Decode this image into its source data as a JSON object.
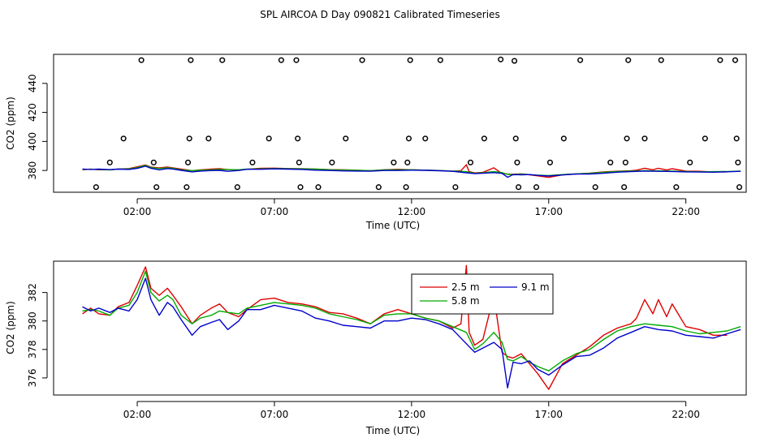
{
  "title": "SPL AIRCOA D  Day 090821  Calibrated Timeseries",
  "colors": {
    "red": "#dd0000",
    "green": "#00aa00",
    "blue": "#0000cc",
    "black": "#000000"
  },
  "chart_data": [
    {
      "type": "scatter+line",
      "name": "top-panel",
      "xlabel": "Time (UTC)",
      "ylabel": "CO2 (ppm)",
      "xlim": [
        -1.05,
        24.2
      ],
      "ylim": [
        365,
        460
      ],
      "xticks": [
        2,
        7,
        12,
        17,
        22
      ],
      "xticklabels": [
        "02:00",
        "07:00",
        "12:00",
        "17:00",
        "22:00"
      ],
      "yticks": [
        380,
        400,
        420,
        440
      ],
      "yticklabels": [
        "380",
        "400",
        "420",
        "440"
      ],
      "markers": [
        {
          "x": 0.5,
          "y": 368.5
        },
        {
          "x": 1.0,
          "y": 385.5
        },
        {
          "x": 1.5,
          "y": 402
        },
        {
          "x": 2.15,
          "y": 456
        },
        {
          "x": 2.6,
          "y": 385.5
        },
        {
          "x": 2.7,
          "y": 368.5
        },
        {
          "x": 3.8,
          "y": 368.5
        },
        {
          "x": 3.85,
          "y": 385.5
        },
        {
          "x": 3.9,
          "y": 402
        },
        {
          "x": 3.95,
          "y": 456
        },
        {
          "x": 4.6,
          "y": 402
        },
        {
          "x": 5.1,
          "y": 456
        },
        {
          "x": 5.65,
          "y": 368.5
        },
        {
          "x": 6.2,
          "y": 385.5
        },
        {
          "x": 6.8,
          "y": 402
        },
        {
          "x": 7.25,
          "y": 456
        },
        {
          "x": 7.8,
          "y": 456
        },
        {
          "x": 7.85,
          "y": 402
        },
        {
          "x": 7.9,
          "y": 385.5
        },
        {
          "x": 7.95,
          "y": 368.5
        },
        {
          "x": 8.6,
          "y": 368.5
        },
        {
          "x": 9.1,
          "y": 385.5
        },
        {
          "x": 9.6,
          "y": 402
        },
        {
          "x": 10.2,
          "y": 456
        },
        {
          "x": 10.8,
          "y": 368.5
        },
        {
          "x": 11.35,
          "y": 385.5
        },
        {
          "x": 11.8,
          "y": 368.5
        },
        {
          "x": 11.85,
          "y": 385.5
        },
        {
          "x": 11.9,
          "y": 402
        },
        {
          "x": 11.95,
          "y": 456
        },
        {
          "x": 12.5,
          "y": 402
        },
        {
          "x": 13.05,
          "y": 456
        },
        {
          "x": 13.6,
          "y": 368.5
        },
        {
          "x": 14.15,
          "y": 385.5
        },
        {
          "x": 14.65,
          "y": 402
        },
        {
          "x": 15.25,
          "y": 456.5
        },
        {
          "x": 15.75,
          "y": 455.5
        },
        {
          "x": 15.8,
          "y": 402
        },
        {
          "x": 15.85,
          "y": 385.5
        },
        {
          "x": 15.9,
          "y": 368.5
        },
        {
          "x": 16.55,
          "y": 368.5
        },
        {
          "x": 17.05,
          "y": 385.5
        },
        {
          "x": 17.55,
          "y": 402
        },
        {
          "x": 18.15,
          "y": 456
        },
        {
          "x": 18.7,
          "y": 368.5
        },
        {
          "x": 19.25,
          "y": 385.5
        },
        {
          "x": 19.75,
          "y": 368.5
        },
        {
          "x": 19.8,
          "y": 385.5
        },
        {
          "x": 19.85,
          "y": 402
        },
        {
          "x": 19.9,
          "y": 456
        },
        {
          "x": 20.5,
          "y": 402
        },
        {
          "x": 21.1,
          "y": 456
        },
        {
          "x": 21.65,
          "y": 368.5
        },
        {
          "x": 22.15,
          "y": 385.5
        },
        {
          "x": 22.7,
          "y": 402
        },
        {
          "x": 23.25,
          "y": 456
        },
        {
          "x": 23.8,
          "y": 456
        },
        {
          "x": 23.85,
          "y": 402
        },
        {
          "x": 23.9,
          "y": 385.5
        },
        {
          "x": 23.95,
          "y": 368.5
        }
      ]
    },
    {
      "type": "line",
      "name": "bottom-panel",
      "xlabel": "Time (UTC)",
      "ylabel": "CO2 (ppm)",
      "xlim": [
        -1.05,
        24.2
      ],
      "ylim": [
        374.8,
        384.2
      ],
      "xticks": [
        2,
        7,
        12,
        17,
        22
      ],
      "xticklabels": [
        "02:00",
        "07:00",
        "12:00",
        "17:00",
        "22:00"
      ],
      "yticks": [
        376,
        378,
        380,
        382
      ],
      "yticklabels": [
        "376",
        "378",
        "380",
        "382"
      ],
      "legend": {
        "position": "center-top",
        "entries": [
          "2.5 m",
          "5.8 m",
          "9.1 m"
        ]
      },
      "series": [
        {
          "name": "2.5 m",
          "color": "red",
          "x": [
            0,
            0.3,
            0.6,
            1,
            1.3,
            1.7,
            2,
            2.3,
            2.5,
            2.8,
            3.1,
            3.3,
            3.6,
            4,
            4.3,
            4.7,
            5,
            5.3,
            5.7,
            6,
            6.5,
            7,
            7.5,
            8,
            8.5,
            9,
            9.5,
            10,
            10.5,
            11,
            11.5,
            12,
            12.5,
            13,
            13.5,
            13.8,
            14,
            14.1,
            14.3,
            14.6,
            15,
            15.3,
            15.5,
            15.7,
            16,
            16.3,
            16.6,
            17,
            17.5,
            18,
            18.5,
            19,
            19.5,
            20,
            20.2,
            20.5,
            20.8,
            21,
            21.3,
            21.5,
            22,
            22.5,
            23,
            23.5
          ],
          "y": [
            380.5,
            380.9,
            380.5,
            380.4,
            381,
            381.3,
            382.5,
            383.8,
            382.3,
            381.8,
            382.3,
            381.8,
            381,
            379.8,
            380.4,
            380.9,
            381.2,
            380.6,
            380.3,
            380.8,
            381.5,
            381.6,
            381.3,
            381.2,
            381,
            380.6,
            380.5,
            380.2,
            379.8,
            380.5,
            380.8,
            380.5,
            380.2,
            380,
            379.5,
            379.8,
            383.9,
            379.2,
            378.3,
            378.7,
            381.8,
            377.8,
            377.5,
            377.4,
            377.7,
            377.0,
            376.3,
            375.2,
            377.0,
            377.6,
            378.2,
            379,
            379.5,
            379.8,
            380.2,
            381.5,
            380.5,
            381.5,
            380.3,
            381.2,
            379.6,
            379.4,
            379.0,
            379.0
          ]
        },
        {
          "name": "5.8 m",
          "color": "green",
          "x": [
            0,
            0.3,
            0.6,
            1,
            1.3,
            1.7,
            2,
            2.3,
            2.5,
            2.8,
            3.1,
            3.3,
            3.6,
            4,
            4.3,
            4.7,
            5,
            5.3,
            5.7,
            6,
            6.5,
            7,
            7.5,
            8,
            8.5,
            9,
            9.5,
            10,
            10.5,
            11,
            11.5,
            12,
            12.5,
            13,
            13.5,
            14,
            14.3,
            14.6,
            15,
            15.3,
            15.5,
            15.7,
            16,
            16.3,
            16.6,
            17,
            17.5,
            18,
            18.5,
            19,
            19.5,
            20,
            20.5,
            21,
            21.5,
            22,
            22.5,
            23,
            23.5,
            24
          ],
          "y": [
            380.7,
            380.8,
            380.7,
            380.4,
            380.9,
            381.1,
            382.0,
            383.5,
            382.0,
            381.4,
            381.8,
            381.5,
            380.4,
            379.8,
            380.2,
            380.4,
            380.7,
            380.6,
            380.5,
            380.9,
            381.1,
            381.3,
            381.2,
            381.1,
            380.9,
            380.5,
            380.3,
            380.1,
            379.8,
            380.4,
            380.5,
            380.5,
            380.2,
            380.0,
            379.6,
            379.2,
            378.0,
            378.4,
            379.2,
            378.5,
            377.3,
            377.2,
            377.5,
            377.1,
            376.8,
            376.5,
            377.2,
            377.7,
            378.0,
            378.7,
            379.3,
            379.6,
            379.8,
            379.7,
            379.6,
            379.3,
            379.1,
            379.2,
            379.3,
            379.6
          ]
        },
        {
          "name": "9.1 m",
          "color": "blue",
          "x": [
            0,
            0.3,
            0.6,
            1,
            1.3,
            1.7,
            2,
            2.3,
            2.5,
            2.8,
            3.1,
            3.3,
            3.6,
            4,
            4.3,
            4.7,
            5,
            5.3,
            5.7,
            6,
            6.5,
            7,
            7.5,
            8,
            8.5,
            9,
            9.5,
            10,
            10.5,
            11,
            11.5,
            12,
            12.5,
            13,
            13.5,
            14,
            14.3,
            14.6,
            15,
            15.3,
            15.5,
            15.7,
            16,
            16.3,
            16.6,
            17,
            17.5,
            18,
            18.5,
            19,
            19.5,
            20,
            20.5,
            21,
            21.5,
            22,
            22.5,
            23,
            23.5,
            24
          ],
          "y": [
            381.0,
            380.7,
            380.9,
            380.6,
            380.9,
            380.7,
            381.5,
            383.0,
            381.5,
            380.4,
            381.3,
            381.0,
            380.1,
            379.0,
            379.6,
            379.9,
            380.1,
            379.4,
            380.0,
            380.8,
            380.8,
            381.1,
            380.9,
            380.7,
            380.2,
            380.0,
            379.7,
            379.6,
            379.5,
            380.0,
            380.0,
            380.2,
            380.1,
            379.8,
            379.4,
            378.4,
            377.8,
            378.1,
            378.5,
            378.0,
            375.3,
            377.1,
            377.0,
            377.2,
            376.6,
            376.2,
            376.9,
            377.5,
            377.6,
            378.1,
            378.8,
            379.2,
            379.6,
            379.4,
            379.3,
            379.0,
            378.9,
            378.8,
            379.1,
            379.4
          ]
        }
      ]
    }
  ]
}
